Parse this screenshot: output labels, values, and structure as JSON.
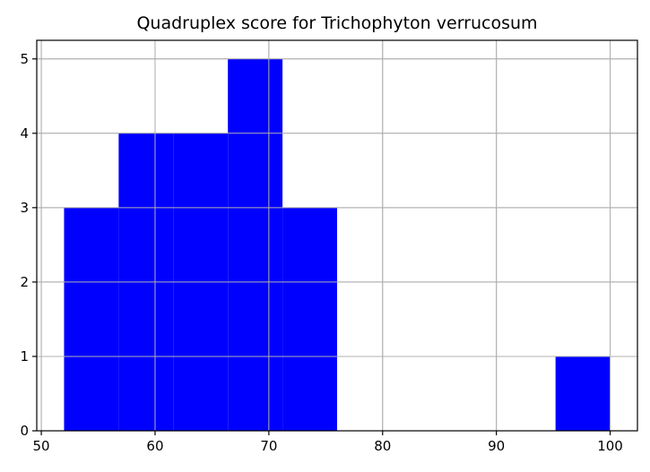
{
  "chart_data": {
    "type": "bar",
    "subtype": "histogram",
    "title": "Quadruplex score for Trichophyton verrucosum",
    "xlabel": "",
    "ylabel": "",
    "bins": [
      {
        "x0": 52.0,
        "x1": 56.8,
        "count": 3
      },
      {
        "x0": 56.8,
        "x1": 61.6,
        "count": 4
      },
      {
        "x0": 61.6,
        "x1": 66.4,
        "count": 4
      },
      {
        "x0": 66.4,
        "x1": 71.2,
        "count": 5
      },
      {
        "x0": 71.2,
        "x1": 76.0,
        "count": 3
      },
      {
        "x0": 76.0,
        "x1": 80.8,
        "count": 0
      },
      {
        "x0": 80.8,
        "x1": 85.6,
        "count": 0
      },
      {
        "x0": 85.6,
        "x1": 90.4,
        "count": 0
      },
      {
        "x0": 90.4,
        "x1": 95.2,
        "count": 0
      },
      {
        "x0": 95.2,
        "x1": 100.0,
        "count": 1
      }
    ],
    "xlim": [
      49.6,
      102.4
    ],
    "ylim": [
      0,
      5.25
    ],
    "xticks": [
      50,
      60,
      70,
      80,
      90,
      100
    ],
    "yticks": [
      0,
      1,
      2,
      3,
      4,
      5
    ],
    "xtick_labels": [
      "50",
      "60",
      "70",
      "80",
      "90",
      "100"
    ],
    "ytick_labels": [
      "0",
      "1",
      "2",
      "3",
      "4",
      "5"
    ],
    "grid": true,
    "bar_color": "#0000ff",
    "grid_color": "#b0b0b0"
  }
}
